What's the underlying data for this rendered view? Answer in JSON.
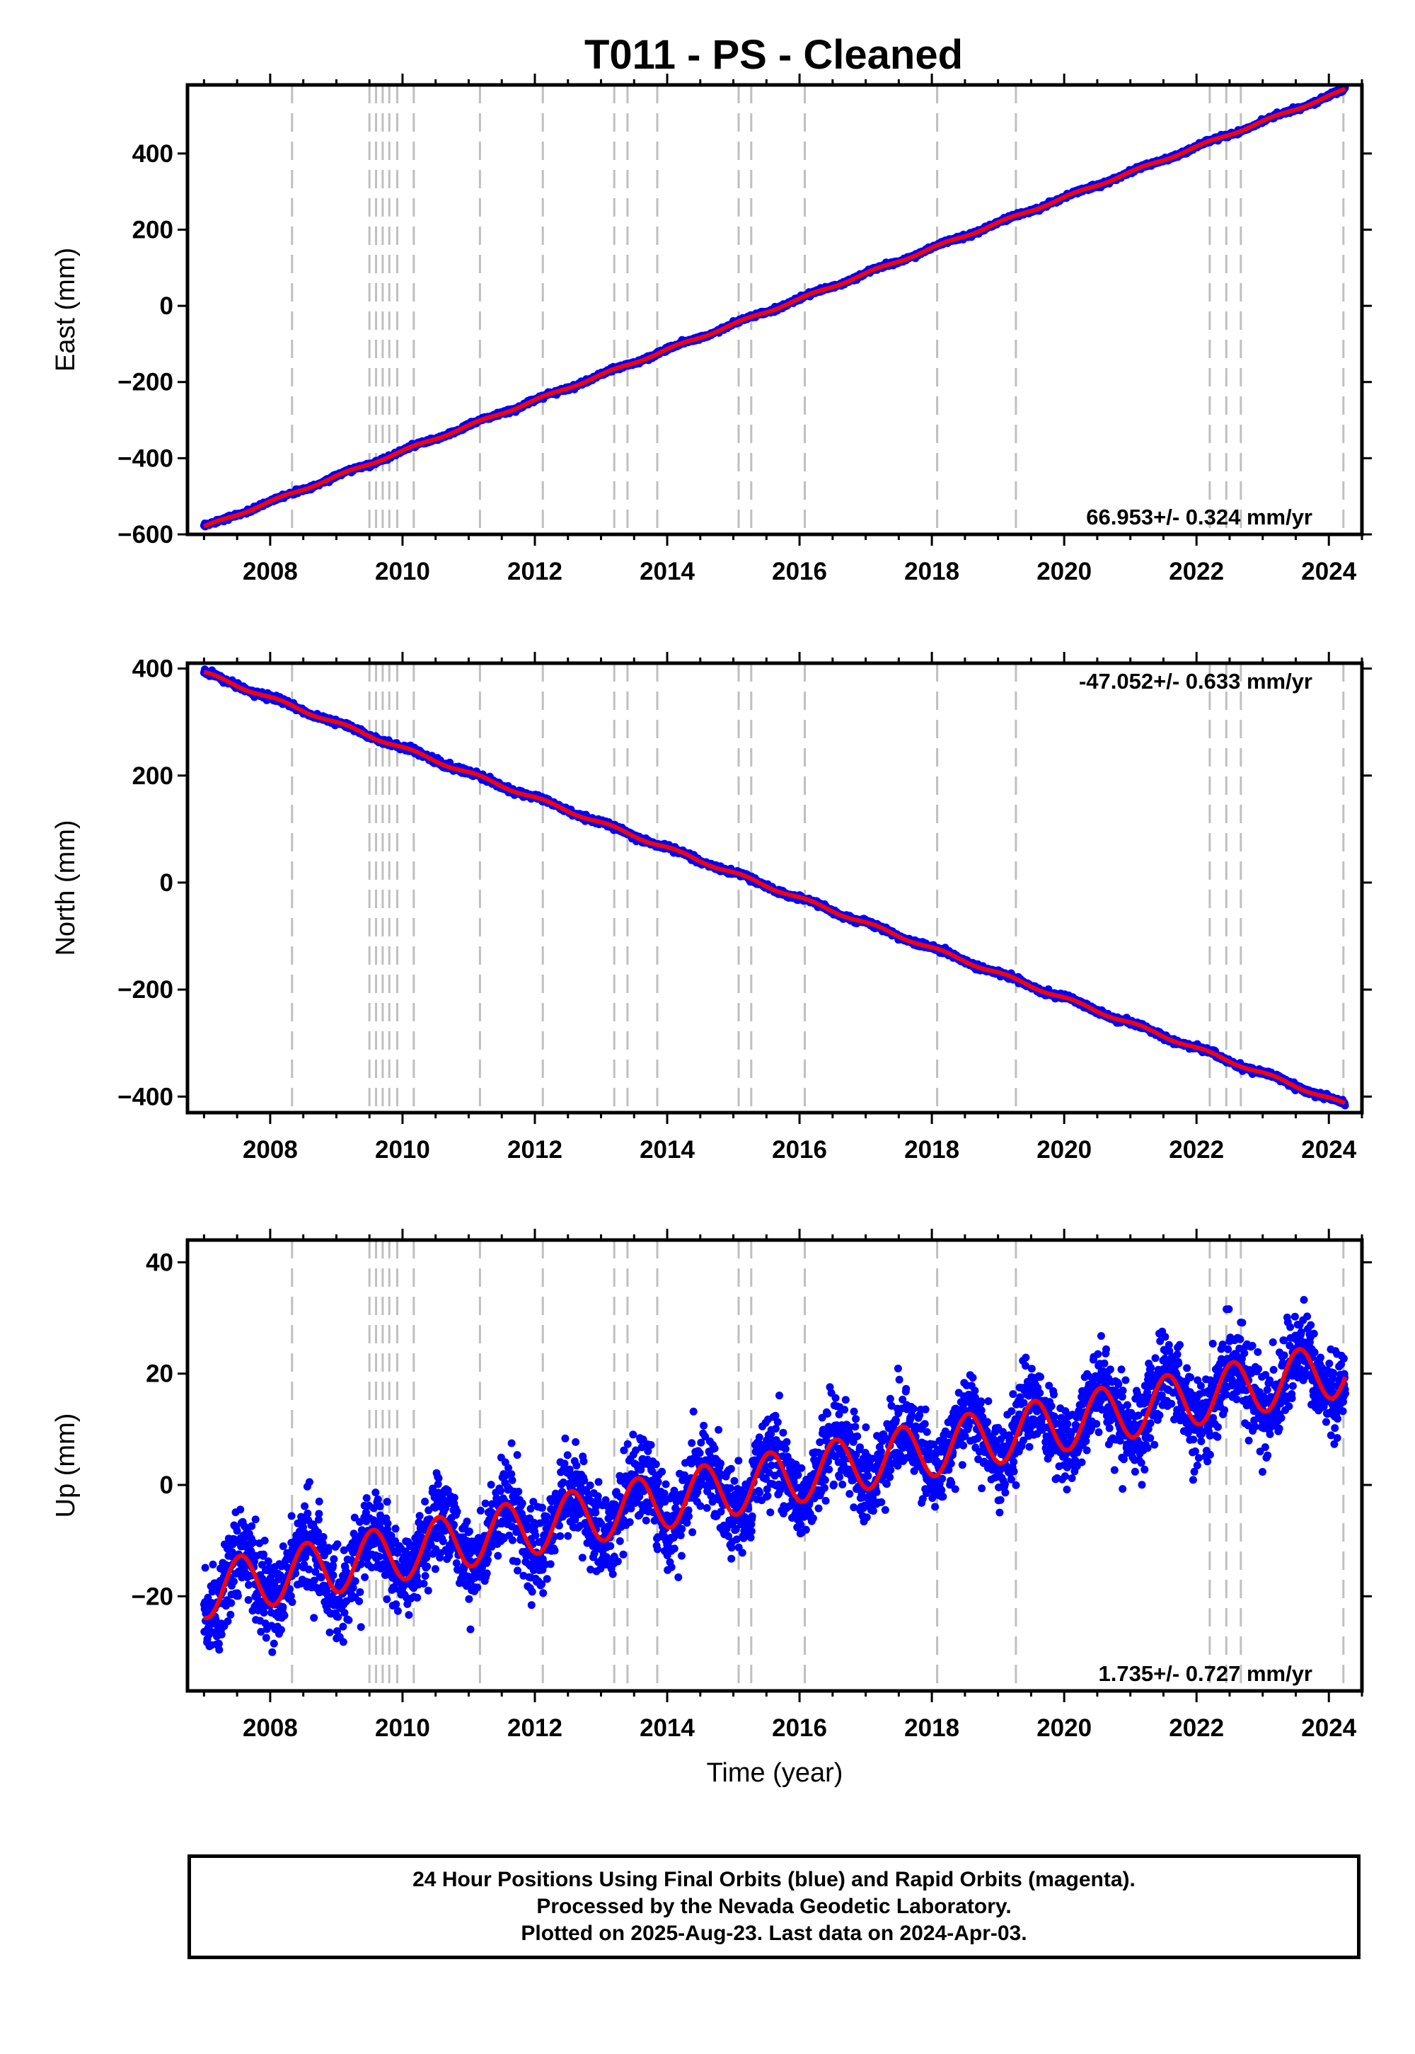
{
  "title": "T011  - PS - Cleaned",
  "footer": {
    "line1": "24 Hour Positions Using Final Orbits (blue) and Rapid Orbits (magenta).",
    "line2": "Processed by the Nevada Geodetic Laboratory.",
    "line3": "Plotted on 2025-Aug-23. Last data on 2024-Apr-03."
  },
  "colors": {
    "points": "#0000ff",
    "model": "#ff0000",
    "steps": "#bfbfbf",
    "frame": "#000000"
  },
  "chart_data": [
    {
      "type": "scatter",
      "component": "east",
      "ylabel": "East (mm)",
      "xlabel": "",
      "xlim": [
        2006.75,
        2024.5
      ],
      "ylim": [
        -600,
        580
      ],
      "yticks": [
        -600,
        -400,
        -200,
        0,
        200,
        400
      ],
      "xticks": [
        2008,
        2010,
        2012,
        2014,
        2016,
        2018,
        2020,
        2022,
        2024
      ],
      "rate": "66.953+/- 0.324 mm/yr",
      "rate_position": "bottom-right",
      "start": [
        2007.0,
        -581
      ],
      "end": [
        2024.25,
        567
      ]
    },
    {
      "type": "scatter",
      "component": "north",
      "ylabel": "North (mm)",
      "xlabel": "",
      "xlim": [
        2006.75,
        2024.5
      ],
      "ylim": [
        -430,
        410
      ],
      "yticks": [
        -400,
        -200,
        0,
        200,
        400
      ],
      "xticks": [
        2008,
        2010,
        2012,
        2014,
        2016,
        2018,
        2020,
        2022,
        2024
      ],
      "rate": "-47.052+/- 0.633 mm/yr",
      "rate_position": "top-right",
      "start": [
        2007.0,
        392
      ],
      "end": [
        2024.25,
        -415
      ]
    },
    {
      "type": "scatter",
      "component": "up",
      "ylabel": "Up (mm)",
      "xlabel": "Time (year)",
      "xlim": [
        2006.75,
        2024.5
      ],
      "ylim": [
        -37,
        44
      ],
      "yticks": [
        -20,
        0,
        20,
        40
      ],
      "xticks": [
        2008,
        2010,
        2012,
        2014,
        2016,
        2018,
        2020,
        2022,
        2024
      ],
      "rate": "1.735+/- 0.727 mm/yr",
      "rate_position": "bottom-right",
      "start": [
        2007.0,
        -19
      ],
      "end": [
        2024.25,
        21
      ]
    }
  ],
  "step_epochs": [
    2008.33,
    2009.5,
    2009.6,
    2009.7,
    2009.8,
    2009.92,
    2010.17,
    2011.17,
    2012.12,
    2013.2,
    2013.4,
    2013.85,
    2015.08,
    2015.27,
    2016.08,
    2018.08,
    2019.27,
    2022.2,
    2022.45,
    2022.67,
    2024.22
  ]
}
